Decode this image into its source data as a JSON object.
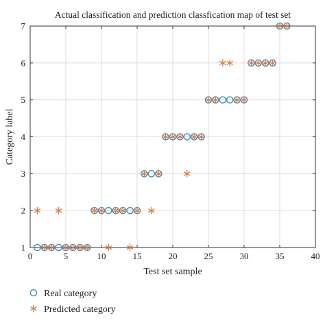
{
  "chart_data": {
    "type": "scatter",
    "title": "Actual classification and prediction classfication map of test set",
    "xlabel": "Test set sample",
    "ylabel": "Category label",
    "xlim": [
      0,
      40
    ],
    "ylim": [
      1,
      7
    ],
    "xticks": [
      0,
      5,
      10,
      15,
      20,
      25,
      30,
      35,
      40
    ],
    "yticks": [
      1,
      2,
      3,
      4,
      5,
      6,
      7
    ],
    "grid": true,
    "legend_position": "bottom-left, below plot",
    "series": [
      {
        "name": "Real category",
        "marker": "circle",
        "color": "#3a8fcf",
        "x": [
          1,
          2,
          3,
          4,
          5,
          6,
          7,
          8,
          9,
          10,
          11,
          12,
          13,
          14,
          15,
          16,
          17,
          18,
          19,
          20,
          21,
          22,
          23,
          24,
          25,
          26,
          27,
          28,
          29,
          30,
          31,
          32,
          33,
          34,
          35,
          36
        ],
        "y": [
          1,
          1,
          1,
          1,
          1,
          1,
          1,
          1,
          2,
          2,
          2,
          2,
          2,
          2,
          2,
          3,
          3,
          3,
          4,
          4,
          4,
          4,
          4,
          4,
          5,
          5,
          5,
          5,
          5,
          5,
          6,
          6,
          6,
          6,
          7,
          7
        ]
      },
      {
        "name": "Predicted category",
        "marker": "asterisk",
        "color": "#e07a3c",
        "x": [
          1,
          2,
          3,
          4,
          5,
          6,
          7,
          8,
          9,
          10,
          11,
          12,
          13,
          14,
          15,
          16,
          17,
          18,
          19,
          20,
          21,
          22,
          23,
          24,
          25,
          26,
          27,
          28,
          29,
          30,
          31,
          32,
          33,
          34,
          35,
          36
        ],
        "y": [
          2,
          1,
          1,
          2,
          1,
          1,
          1,
          1,
          2,
          2,
          1,
          2,
          2,
          1,
          2,
          3,
          2,
          3,
          4,
          4,
          4,
          3,
          4,
          4,
          5,
          5,
          6,
          6,
          5,
          5,
          6,
          6,
          6,
          6,
          7,
          7
        ]
      }
    ]
  }
}
